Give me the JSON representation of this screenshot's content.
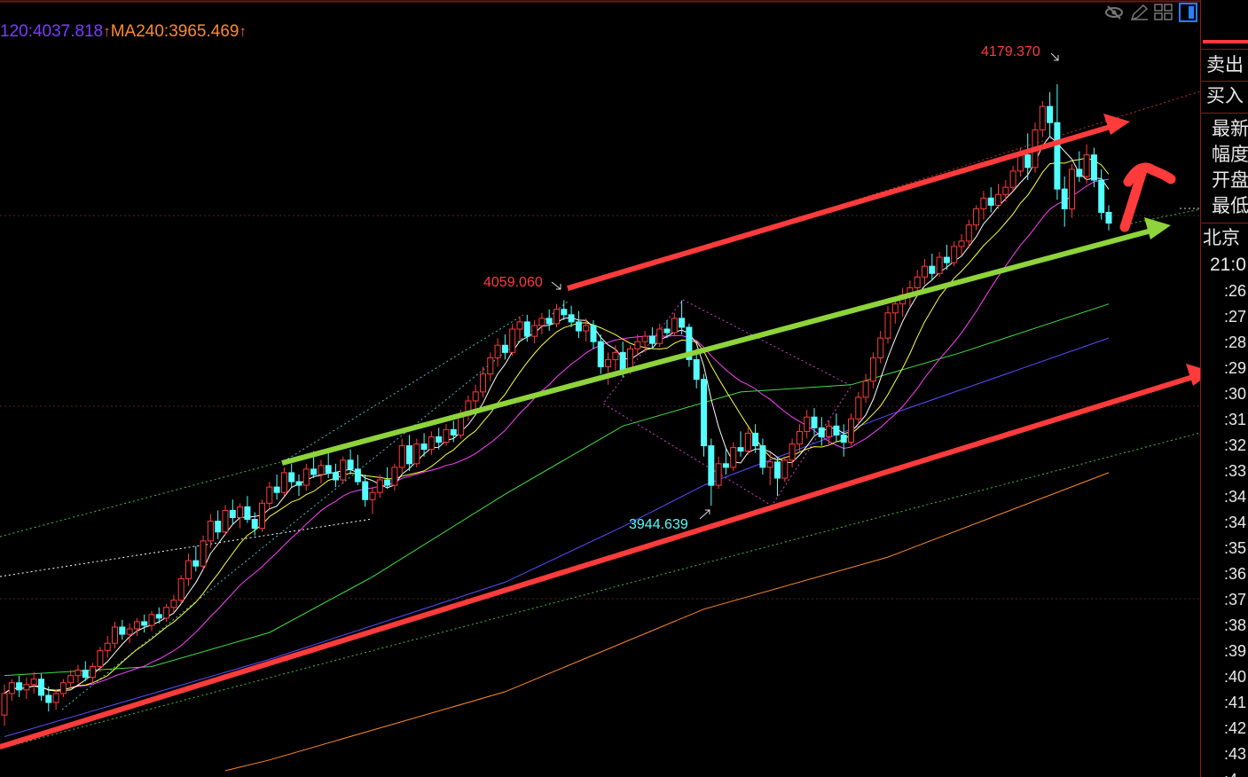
{
  "header": {
    "ma120_text": "120:4037.818",
    "ma120_arrow": "↑",
    "ma240_text": "MA240:3965.469",
    "ma240_arrow": "↑"
  },
  "toolbar": {
    "icons": [
      "eye-slash-icon",
      "pencil-icon",
      "grid-icon",
      "panel-toggle-icon"
    ]
  },
  "side_panel": {
    "sell": "卖出",
    "buy": "买入",
    "quote_labels": [
      "最新",
      "幅度",
      "开盘",
      "最低"
    ],
    "timezone": "北京",
    "time": "21:0",
    "ticks": [
      ":26",
      ":27",
      ":28",
      ":29",
      ":30",
      ":31",
      ":32",
      ":33",
      ":34",
      ":34",
      ":35",
      ":36",
      ":37",
      ":38",
      ":39",
      ":40",
      ":41",
      ":42",
      ":43",
      ":4"
    ]
  },
  "colors": {
    "up": "#ff3b3b",
    "down": "#54ffff",
    "ma5": "#ffffff",
    "ma10": "#ffff40",
    "ma20": "#ff40ff",
    "ma60": "#40e040",
    "ma120": "#5a4cff",
    "ma240": "#ff8a2a"
  },
  "chart_data": {
    "type": "candlestick",
    "annotations": {
      "high_label": "4179.370",
      "mid_high_label": "4059.060",
      "low_label": "3944.639"
    },
    "candles_ohlc": [
      [
        3828,
        3845,
        3822,
        3840
      ],
      [
        3840,
        3848,
        3836,
        3846
      ],
      [
        3846,
        3850,
        3838,
        3842
      ],
      [
        3842,
        3849,
        3837,
        3845
      ],
      [
        3845,
        3852,
        3840,
        3848
      ],
      [
        3848,
        3851,
        3836,
        3839
      ],
      [
        3839,
        3844,
        3830,
        3835
      ],
      [
        3835,
        3842,
        3831,
        3840
      ],
      [
        3840,
        3848,
        3838,
        3846
      ],
      [
        3846,
        3853,
        3843,
        3850
      ],
      [
        3850,
        3856,
        3846,
        3853
      ],
      [
        3853,
        3858,
        3847,
        3849
      ],
      [
        3849,
        3857,
        3846,
        3855
      ],
      [
        3855,
        3866,
        3852,
        3864
      ],
      [
        3864,
        3872,
        3860,
        3868
      ],
      [
        3868,
        3880,
        3865,
        3877
      ],
      [
        3877,
        3881,
        3870,
        3873
      ],
      [
        3873,
        3879,
        3868,
        3876
      ],
      [
        3876,
        3882,
        3872,
        3880
      ],
      [
        3880,
        3884,
        3874,
        3878
      ],
      [
        3878,
        3886,
        3875,
        3884
      ],
      [
        3884,
        3888,
        3879,
        3882
      ],
      [
        3882,
        3890,
        3880,
        3888
      ],
      [
        3888,
        3895,
        3885,
        3892
      ],
      [
        3892,
        3906,
        3890,
        3904
      ],
      [
        3904,
        3918,
        3900,
        3914
      ],
      [
        3914,
        3922,
        3908,
        3911
      ],
      [
        3911,
        3928,
        3909,
        3925
      ],
      [
        3925,
        3940,
        3921,
        3936
      ],
      [
        3936,
        3942,
        3926,
        3930
      ],
      [
        3930,
        3945,
        3928,
        3942
      ],
      [
        3942,
        3948,
        3934,
        3938
      ],
      [
        3938,
        3946,
        3932,
        3944
      ],
      [
        3944,
        3950,
        3935,
        3937
      ],
      [
        3937,
        3941,
        3928,
        3932
      ],
      [
        3932,
        3948,
        3930,
        3946
      ],
      [
        3946,
        3958,
        3943,
        3955
      ],
      [
        3955,
        3962,
        3948,
        3952
      ],
      [
        3952,
        3966,
        3950,
        3963
      ],
      [
        3963,
        3968,
        3955,
        3958
      ],
      [
        3958,
        3962,
        3950,
        3956
      ],
      [
        3956,
        3968,
        3953,
        3965
      ],
      [
        3965,
        3975,
        3960,
        3962
      ],
      [
        3962,
        3970,
        3957,
        3967
      ],
      [
        3967,
        3974,
        3960,
        3963
      ],
      [
        3963,
        3968,
        3955,
        3959
      ],
      [
        3959,
        3972,
        3957,
        3970
      ],
      [
        3970,
        3976,
        3962,
        3965
      ],
      [
        3965,
        3973,
        3956,
        3958
      ],
      [
        3958,
        3962,
        3944,
        3948
      ],
      [
        3948,
        3955,
        3940,
        3952
      ],
      [
        3952,
        3962,
        3949,
        3959
      ],
      [
        3959,
        3966,
        3954,
        3956
      ],
      [
        3956,
        3968,
        3953,
        3966
      ],
      [
        3966,
        3982,
        3963,
        3978
      ],
      [
        3978,
        3984,
        3964,
        3968
      ],
      [
        3968,
        3982,
        3966,
        3979
      ],
      [
        3979,
        3985,
        3972,
        3976
      ],
      [
        3976,
        3986,
        3973,
        3983
      ],
      [
        3983,
        3988,
        3976,
        3980
      ],
      [
        3980,
        3990,
        3978,
        3987
      ],
      [
        3987,
        3992,
        3980,
        3984
      ],
      [
        3984,
        3998,
        3982,
        3995
      ],
      [
        3995,
        4006,
        3992,
        4003
      ],
      [
        4003,
        4012,
        3998,
        4008
      ],
      [
        4008,
        4022,
        4005,
        4018
      ],
      [
        4018,
        4030,
        4014,
        4027
      ],
      [
        4027,
        4038,
        4022,
        4034
      ],
      [
        4034,
        4040,
        4026,
        4030
      ],
      [
        4030,
        4046,
        4028,
        4043
      ],
      [
        4043,
        4050,
        4037,
        4047
      ],
      [
        4047,
        4051,
        4036,
        4039
      ],
      [
        4039,
        4048,
        4035,
        4045
      ],
      [
        4045,
        4052,
        4040,
        4049
      ],
      [
        4049,
        4054,
        4042,
        4046
      ],
      [
        4046,
        4057,
        4044,
        4054
      ],
      [
        4054,
        4059.06,
        4048,
        4051
      ],
      [
        4051,
        4056,
        4044,
        4047
      ],
      [
        4047,
        4053,
        4038,
        4042
      ],
      [
        4042,
        4049,
        4036,
        4045
      ],
      [
        4045,
        4048,
        4032,
        4036
      ],
      [
        4036,
        4040,
        4018,
        4022
      ],
      [
        4022,
        4030,
        4012,
        4026
      ],
      [
        4026,
        4034,
        4020,
        4030
      ],
      [
        4030,
        4036,
        4016,
        4020
      ],
      [
        4020,
        4034,
        4018,
        4032
      ],
      [
        4032,
        4040,
        4028,
        4036
      ],
      [
        4036,
        4042,
        4030,
        4039
      ],
      [
        4039,
        4044,
        4032,
        4035
      ],
      [
        4035,
        4046,
        4033,
        4043
      ],
      [
        4043,
        4048,
        4038,
        4041
      ],
      [
        4041,
        4052,
        4039,
        4049
      ],
      [
        4049,
        4059,
        4040,
        4044
      ],
      [
        4044,
        4046,
        4022,
        4026
      ],
      [
        4026,
        4032,
        4010,
        4015
      ],
      [
        4015,
        4018,
        3972,
        3978
      ],
      [
        3978,
        3982,
        3944.639,
        3956
      ],
      [
        3956,
        3972,
        3954,
        3968
      ],
      [
        3968,
        3976,
        3962,
        3966
      ],
      [
        3966,
        3980,
        3964,
        3977
      ],
      [
        3977,
        3986,
        3972,
        3975
      ],
      [
        3975,
        3988,
        3973,
        3985
      ],
      [
        3985,
        3990,
        3974,
        3978
      ],
      [
        3978,
        3982,
        3962,
        3966
      ],
      [
        3966,
        3974,
        3956,
        3969
      ],
      [
        3969,
        3972,
        3950,
        3960
      ],
      [
        3960,
        3972,
        3958,
        3970
      ],
      [
        3970,
        3982,
        3966,
        3979
      ],
      [
        3979,
        3990,
        3975,
        3986
      ],
      [
        3986,
        3998,
        3982,
        3994
      ],
      [
        3994,
        3999,
        3984,
        3988
      ],
      [
        3988,
        3994,
        3978,
        3983
      ],
      [
        3983,
        3992,
        3978,
        3989
      ],
      [
        3989,
        3996,
        3980,
        3984
      ],
      [
        3984,
        3990,
        3972,
        3980
      ],
      [
        3980,
        3996,
        3978,
        3993
      ],
      [
        3993,
        4008,
        3990,
        4005
      ],
      [
        4005,
        4018,
        4002,
        4014
      ],
      [
        4014,
        4030,
        4010,
        4027
      ],
      [
        4027,
        4042,
        4024,
        4038
      ],
      [
        4038,
        4056,
        4035,
        4052
      ],
      [
        4052,
        4060,
        4046,
        4057
      ],
      [
        4057,
        4066,
        4050,
        4062
      ],
      [
        4062,
        4070,
        4056,
        4066
      ],
      [
        4066,
        4076,
        4062,
        4072
      ],
      [
        4072,
        4082,
        4068,
        4078
      ],
      [
        4078,
        4085,
        4070,
        4074
      ],
      [
        4074,
        4086,
        4072,
        4083
      ],
      [
        4083,
        4090,
        4076,
        4080
      ],
      [
        4080,
        4092,
        4078,
        4089
      ],
      [
        4089,
        4096,
        4084,
        4092
      ],
      [
        4092,
        4104,
        4088,
        4101
      ],
      [
        4101,
        4112,
        4098,
        4110
      ],
      [
        4110,
        4120,
        4104,
        4116
      ],
      [
        4116,
        4122,
        4108,
        4112
      ],
      [
        4112,
        4124,
        4110,
        4118
      ],
      [
        4118,
        4126,
        4114,
        4122
      ],
      [
        4122,
        4134,
        4120,
        4131
      ],
      [
        4131,
        4144,
        4128,
        4140
      ],
      [
        4140,
        4152,
        4126,
        4133
      ],
      [
        4133,
        4158,
        4130,
        4154
      ],
      [
        4154,
        4170,
        4150,
        4167
      ],
      [
        4167,
        4175,
        4150,
        4158
      ],
      [
        4158,
        4179.37,
        4115,
        4121
      ],
      [
        4121,
        4128,
        4100,
        4110
      ],
      [
        4110,
        4135,
        4105,
        4132
      ],
      [
        4132,
        4142,
        4125,
        4128
      ],
      [
        4128,
        4146,
        4124,
        4140
      ],
      [
        4140,
        4144,
        4122,
        4126
      ],
      [
        4126,
        4132,
        4104,
        4108
      ],
      [
        4108,
        4112,
        4098,
        4102
      ]
    ],
    "moving_averages": {
      "ma60": [
        [
          0,
          3850
        ],
        [
          20,
          3855
        ],
        [
          36,
          3874
        ],
        [
          50,
          3905
        ],
        [
          68,
          3951
        ],
        [
          84,
          3989
        ],
        [
          100,
          4008
        ],
        [
          115,
          4012
        ],
        [
          130,
          4030
        ],
        [
          150,
          4057
        ]
      ],
      "ma120": [
        [
          0,
          3816
        ],
        [
          36,
          3859
        ],
        [
          68,
          3902
        ],
        [
          84,
          3933
        ],
        [
          95,
          3956
        ],
        [
          120,
          3995
        ],
        [
          150,
          4038
        ]
      ],
      "ma240": [
        [
          30,
          3797
        ],
        [
          36,
          3803
        ],
        [
          68,
          3841
        ],
        [
          95,
          3887
        ],
        [
          120,
          3916
        ],
        [
          150,
          3963
        ]
      ]
    },
    "computed_ma_periods": [
      5,
      10,
      20
    ],
    "grid": "dotted horizontal",
    "ylim": [
      3793,
      4226
    ]
  }
}
